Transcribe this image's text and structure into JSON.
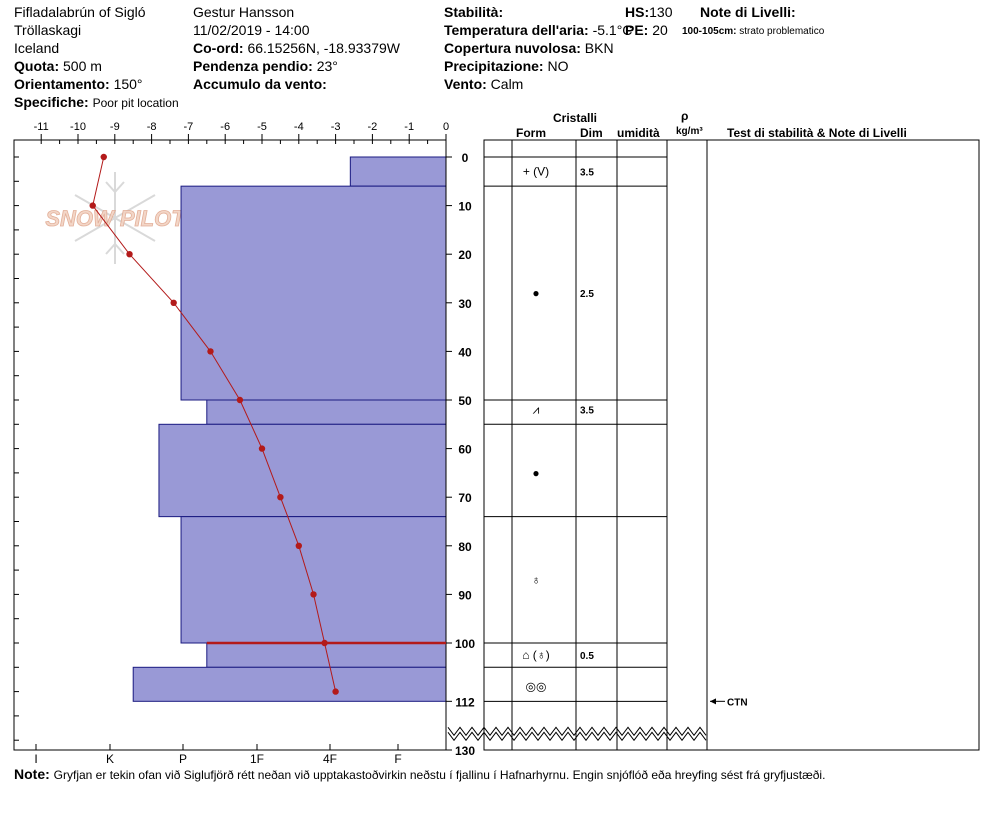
{
  "header": {
    "location": "Fifladalabrún of Sigló",
    "region": "Tröllaskagi",
    "country": "Iceland",
    "quota_label": "Quota:",
    "quota_value": "500 m",
    "orient_label": "Orientamento:",
    "orient_value": "150°",
    "specifiche_label": "Specifiche:",
    "specifiche_value": "Poor pit location",
    "observer": "Gestur Hansson",
    "datetime": "11/02/2019 - 14:00",
    "coord_label": "Co-ord:",
    "coord_value": "66.15256N, -18.93379W",
    "pendenza_label": "Pendenza pendio:",
    "pendenza_value": "23°",
    "accumulo_label": "Accumulo da vento:",
    "stabilita_label": "Stabilità:",
    "temp_label": "Temperatura dell'aria:",
    "temp_value": "-5.1°C",
    "copertura_label": "Copertura nuvolosa:",
    "copertura_value": "BKN",
    "precip_label": "Precipitazione:",
    "precip_value": "NO",
    "vento_label": "Vento:",
    "vento_value": "Calm",
    "hs_label": "HS:",
    "hs_value": "130",
    "pe_label": "PE:",
    "pe_value": "20",
    "notes_title": "Note di Livelli:",
    "notes_range": "100-105cm:",
    "notes_text": "strato problematico",
    "watermark": "SNOW PILOT"
  },
  "table_header": {
    "cristalli": "Cristalli",
    "form": "Form",
    "dim": "Dim",
    "umidita": "umidità",
    "rho": "ρ",
    "rho_unit": "kg/m³",
    "tests": "Test di stabilità & Note di Livelli"
  },
  "footer": {
    "note_label": "Note:",
    "note_text": "Gryfjan er tekin ofan við Siglufjörð rétt neðan við upptakastoðvirkin neðstu í fjallinu í Hafnarhyrnu. Engin snjóflóð eða hreyfing sést frá gryfjustæði."
  },
  "colors": {
    "hardness_fill": "#9999d6",
    "temp_line": "#b31a1a",
    "problem_line": "#b31a1a"
  },
  "chart_data": {
    "type": "snow-profile",
    "temp_axis": {
      "ticks": [
        "-11",
        "-10",
        "-9",
        "-8",
        "-7",
        "-6",
        "-5",
        "-4",
        "-3",
        "-2",
        "-1",
        "0"
      ],
      "range": [
        -11.5,
        0
      ]
    },
    "hardness_axis": {
      "ticks": [
        "I",
        "K",
        "P",
        "1F",
        "4F",
        "F"
      ]
    },
    "depth_axis": {
      "ticks": [
        "0",
        "10",
        "20",
        "30",
        "40",
        "50",
        "60",
        "70",
        "80",
        "90",
        "100",
        "112",
        "130"
      ],
      "range": [
        0,
        130
      ]
    },
    "temperature_profile": [
      {
        "depth": 0,
        "temp": -9.3
      },
      {
        "depth": 10,
        "temp": -9.6
      },
      {
        "depth": 20,
        "temp": -8.6
      },
      {
        "depth": 30,
        "temp": -7.4
      },
      {
        "depth": 40,
        "temp": -6.4
      },
      {
        "depth": 50,
        "temp": -5.6
      },
      {
        "depth": 60,
        "temp": -5.0
      },
      {
        "depth": 70,
        "temp": -4.5
      },
      {
        "depth": 80,
        "temp": -4.0
      },
      {
        "depth": 90,
        "temp": -3.6
      },
      {
        "depth": 100,
        "temp": -3.3
      },
      {
        "depth": 110,
        "temp": -3.0
      }
    ],
    "layers": [
      {
        "top": 0,
        "bottom": 6,
        "hardness_temp": -2.6,
        "form": "+ (V)",
        "dim": "3.5",
        "form_depth": 3
      },
      {
        "top": 6,
        "bottom": 50,
        "hardness_temp": -7.2,
        "form": "●",
        "dim": "2.5",
        "form_depth": 28
      },
      {
        "top": 50,
        "bottom": 55,
        "hardness_temp": -6.5,
        "form": "⩘",
        "dim": "3.5",
        "form_depth": 52
      },
      {
        "top": 55,
        "bottom": 74,
        "hardness_temp": -7.8,
        "form": "●",
        "dim": "",
        "form_depth": 65
      },
      {
        "top": 74,
        "bottom": 100,
        "hardness_temp": -7.2,
        "form": "♁",
        "dim": "",
        "form_depth": 87
      },
      {
        "top": 100,
        "bottom": 105,
        "hardness_temp": -6.5,
        "form": "⌂ (♁)",
        "dim": "0.5",
        "form_depth": 102.5
      },
      {
        "top": 105,
        "bottom": 112,
        "hardness_temp": -8.5,
        "form": "◎◎",
        "dim": "",
        "form_depth": 109
      }
    ],
    "problem_layer_depth": 100,
    "tests": [
      {
        "depth": 112,
        "label": "CTN"
      }
    ]
  }
}
